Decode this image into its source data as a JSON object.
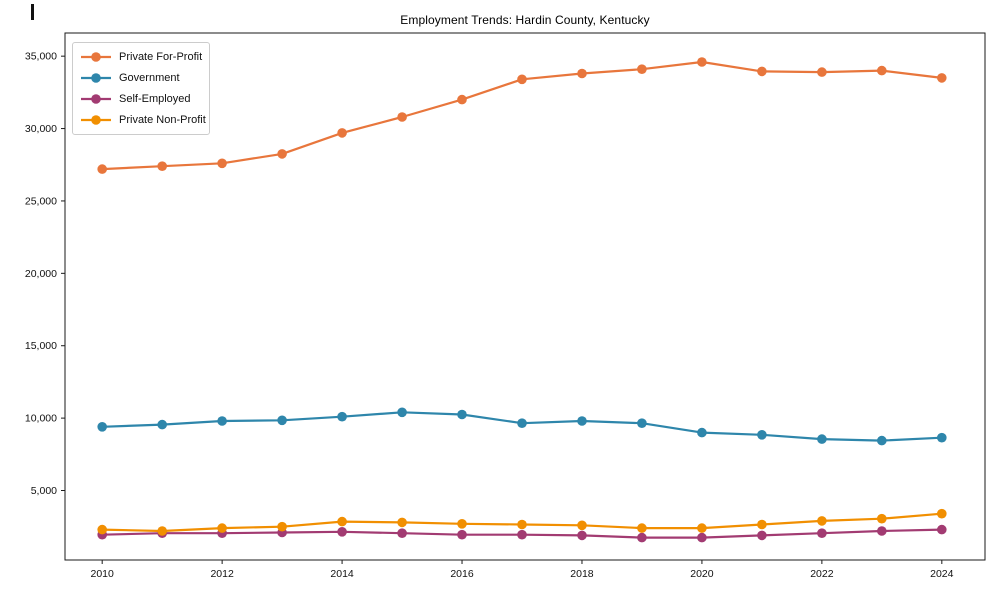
{
  "chart_data": {
    "type": "line",
    "title": "Employment Trends: Hardin County, Kentucky",
    "xlabel": "",
    "ylabel": "",
    "grid": false,
    "legend_position": "upper-left",
    "x": [
      2010,
      2011,
      2012,
      2013,
      2014,
      2015,
      2016,
      2017,
      2018,
      2019,
      2020,
      2021,
      2022,
      2023,
      2024
    ],
    "series": [
      {
        "name": "Private For-Profit",
        "color": "#E8763C",
        "values": [
          27200,
          27400,
          27600,
          28250,
          29700,
          30800,
          32000,
          33400,
          33800,
          34100,
          34600,
          33950,
          33900,
          34000,
          33500
        ]
      },
      {
        "name": "Government",
        "color": "#2E86AB",
        "values": [
          9400,
          9550,
          9800,
          9850,
          10100,
          10400,
          10250,
          9650,
          9800,
          9650,
          9000,
          8850,
          8550,
          8450,
          8650
        ]
      },
      {
        "name": "Self-Employed",
        "color": "#A23B72",
        "values": [
          1950,
          2050,
          2050,
          2100,
          2150,
          2050,
          1950,
          1950,
          1900,
          1750,
          1750,
          1900,
          2050,
          2200,
          2300
        ]
      },
      {
        "name": "Private Non-Profit",
        "color": "#F18F01",
        "values": [
          2300,
          2200,
          2400,
          2500,
          2850,
          2800,
          2700,
          2650,
          2600,
          2400,
          2400,
          2650,
          2900,
          3050,
          3400
        ]
      }
    ],
    "xlim": [
      2009.38,
      2024.72
    ],
    "ylim": [
      200,
      36600
    ],
    "xticks": {
      "values": [
        2010,
        2012,
        2014,
        2016,
        2018,
        2020,
        2022,
        2024
      ],
      "labels": [
        "2010",
        "2012",
        "2014",
        "2016",
        "2018",
        "2020",
        "2022",
        "2024"
      ]
    },
    "yticks": {
      "values": [
        5000,
        10000,
        15000,
        20000,
        25000,
        30000,
        35000
      ],
      "labels": [
        "5,000",
        "10,000",
        "15,000",
        "20,000",
        "25,000",
        "30,000",
        "35,000"
      ]
    },
    "axis_color": "#1a1a1a",
    "tick_label_color": "#111111",
    "background_color": "#ffffff"
  }
}
